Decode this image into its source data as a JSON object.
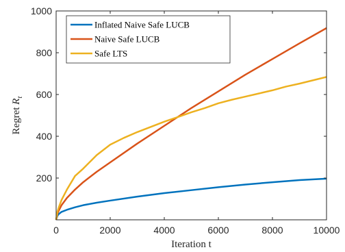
{
  "chart_data": {
    "type": "line",
    "xlabel": "Iteration t",
    "ylabel_prefix": "Regret ",
    "ylabel_symbol": "R",
    "ylabel_subscript": "t",
    "xlim": [
      0,
      10000
    ],
    "ylim": [
      0,
      1000
    ],
    "xticks": [
      0,
      2000,
      4000,
      6000,
      8000,
      10000
    ],
    "yticks": [
      200,
      400,
      600,
      800,
      1000
    ],
    "grid": false,
    "legend_position": "top-left",
    "series": [
      {
        "name": "Inflated Naive Safe LUCB",
        "color": "#0072BD",
        "x": [
          0,
          50,
          100,
          200,
          400,
          700,
          1000,
          1500,
          2000,
          3000,
          4000,
          5000,
          6000,
          7000,
          8000,
          9000,
          10000
        ],
        "y": [
          0,
          20,
          28,
          38,
          48,
          60,
          70,
          82,
          92,
          111,
          128,
          142,
          156,
          169,
          180,
          190,
          197
        ]
      },
      {
        "name": "Naive Safe LUCB",
        "color": "#D95319",
        "x": [
          0,
          50,
          100,
          200,
          400,
          700,
          1000,
          1500,
          2000,
          3000,
          4000,
          5000,
          6000,
          7000,
          8000,
          9000,
          10000
        ],
        "y": [
          0,
          30,
          45,
          70,
          105,
          145,
          180,
          230,
          275,
          365,
          450,
          535,
          615,
          695,
          770,
          845,
          918
        ]
      },
      {
        "name": "Safe LTS",
        "color": "#EDB120",
        "x": [
          0,
          50,
          100,
          200,
          400,
          700,
          1000,
          1500,
          2000,
          2500,
          3000,
          3500,
          4000,
          4500,
          5000,
          5500,
          6000,
          6500,
          7000,
          7500,
          8000,
          8500,
          9000,
          9500,
          10000
        ],
        "y": [
          0,
          40,
          60,
          95,
          145,
          210,
          245,
          310,
          360,
          392,
          420,
          445,
          470,
          492,
          515,
          535,
          558,
          575,
          590,
          605,
          620,
          638,
          652,
          668,
          684
        ]
      }
    ]
  }
}
